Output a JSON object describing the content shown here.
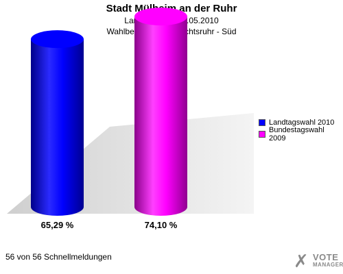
{
  "chart_data": {
    "type": "bar",
    "title": "Stadt Mülheim an der Ruhr",
    "subtitles": [
      "Landtagswahl 09.05.2010",
      "Wahlbeteiligung 1 Rechtsruhr - Süd"
    ],
    "ylim": [
      0,
      80
    ],
    "grid": false,
    "legend_position": "right",
    "series": [
      {
        "name": "Landtagswahl 2010",
        "value": 65.29,
        "label": "65,29 %",
        "color": "#0000ff"
      },
      {
        "name": "Bundestagswahl 2009",
        "value": 74.1,
        "label": "74,10 %",
        "color": "#ff00ff"
      }
    ]
  },
  "footer": "56 von 56 Schnellmeldungen",
  "logo": {
    "line1": "VOTE",
    "line2": "MANAGER",
    "icon": "checkmark-x-icon"
  }
}
